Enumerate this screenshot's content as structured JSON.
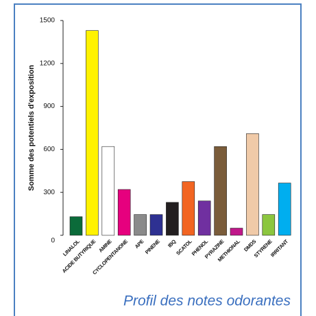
{
  "chart_data": {
    "type": "bar",
    "ylabel": "Somme des potentiels d'exposition",
    "caption": "Profil des notes odorantes",
    "categories": [
      "LINALOL",
      "ACIDE BUTYRIQUE",
      "AMINE",
      "CYCLOPENTANONE",
      "APE",
      "PINENE",
      "IBQ",
      "SCATOL",
      "PHENOL",
      "PYRAZINE",
      "METHIONAL",
      "DMDS",
      "STYRENE",
      "IRRITANT"
    ],
    "values": [
      130,
      1430,
      620,
      320,
      145,
      145,
      230,
      375,
      240,
      620,
      50,
      710,
      145,
      365
    ],
    "colors": [
      "#0b6b3a",
      "#fff200",
      "#ffffff",
      "#e6007e",
      "#8a8a8a",
      "#2e3192",
      "#231f20",
      "#f26522",
      "#7030a0",
      "#7a5c3a",
      "#c0178a",
      "#f0caa8",
      "#8cc63f",
      "#00aeef"
    ],
    "ylim": [
      0,
      1500
    ],
    "yticks": [
      0,
      300,
      600,
      900,
      1200,
      1500
    ]
  }
}
